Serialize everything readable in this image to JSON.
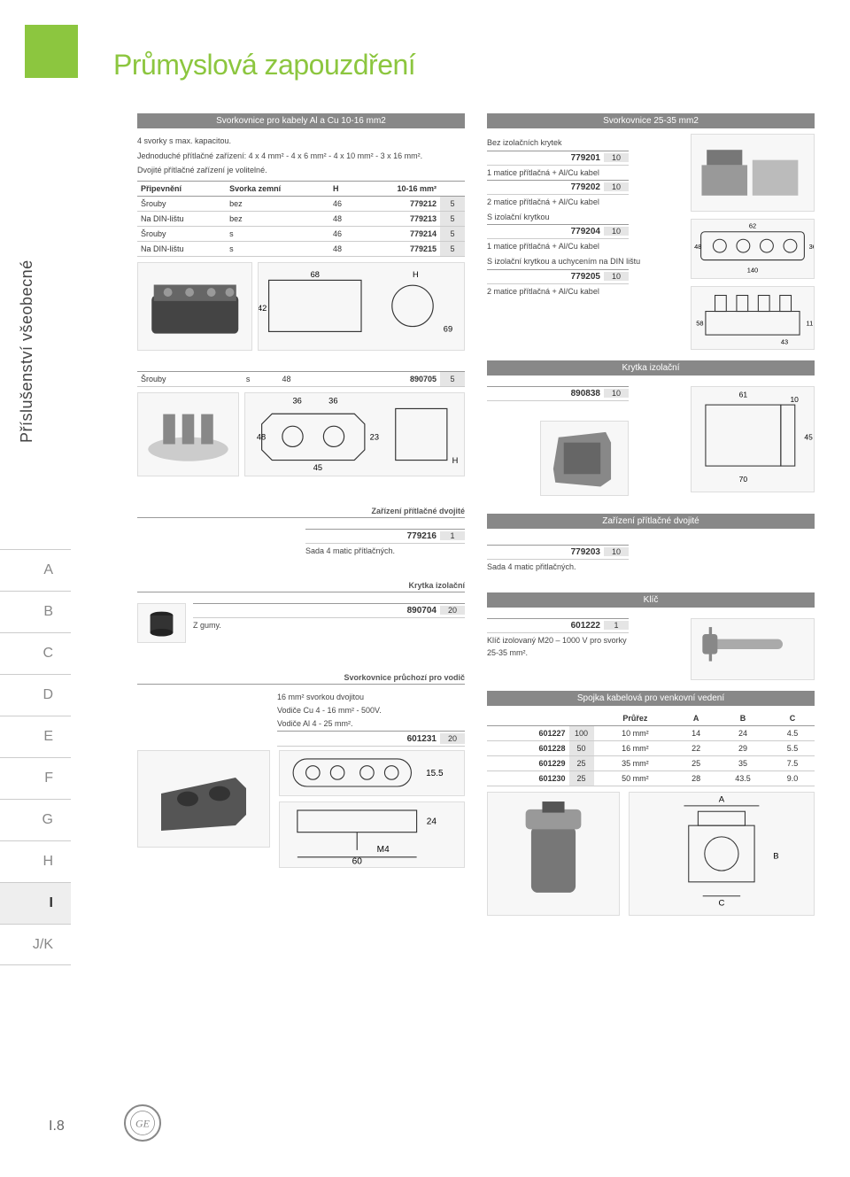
{
  "title": "Průmyslová zapouzdření",
  "side_tab": "Příslušenství všeobecné",
  "page_number": "I.8",
  "index_letters": [
    "A",
    "B",
    "C",
    "D",
    "E",
    "F",
    "G",
    "H",
    "I",
    "J/K"
  ],
  "index_active": "I",
  "left": {
    "sec1": {
      "header": "Svorkovnice pro kabely Al a Cu 10-16 mm2",
      "note1": "4 svorky s max. kapacitou.",
      "note2": "Jednoduché přítlačné zařízení: 4 x 4 mm² - 4 x 6 mm² - 4 x 10 mm² - 3 x 16 mm².",
      "note3": "Dvojité přítlačné zařízení je volitelné.",
      "th": [
        "Připevnění",
        "Svorka zemní",
        "H",
        "10-16 mm²",
        ""
      ],
      "rows": [
        [
          "Šrouby",
          "bez",
          "46",
          "779212",
          "5"
        ],
        [
          "Na DIN-lištu",
          "bez",
          "48",
          "779213",
          "5"
        ],
        [
          "Šrouby",
          "s",
          "46",
          "779214",
          "5"
        ],
        [
          "Na DIN-lištu",
          "s",
          "48",
          "779215",
          "5"
        ]
      ],
      "row_extra": [
        "Šrouby",
        "s",
        "48",
        "890705",
        "5"
      ]
    },
    "sec2": {
      "header": "Zařízení přítlačné dvojité",
      "code": "779216",
      "qty": "1",
      "note": "Sada 4 matic přítlačných."
    },
    "sec3": {
      "header": "Krytka izolační",
      "code": "890704",
      "qty": "20",
      "note": "Z gumy."
    },
    "sec4": {
      "header": "Svorkovnice průchozí pro vodič",
      "note1": "16 mm² svorkou dvojitou",
      "note2": "Vodiče Cu 4 - 16 mm² - 500V.",
      "note3": "Vodiče Al 4 - 25 mm².",
      "code": "601231",
      "qty": "20"
    }
  },
  "right": {
    "sec1": {
      "header": "Svorkovnice 25-35 mm2",
      "items": [
        {
          "label": "Bez izolačních krytek",
          "code": "779201",
          "qty": "10",
          "sub": "1 matice přítlačná + Al/Cu kabel"
        },
        {
          "label": "",
          "code": "779202",
          "qty": "10",
          "sub": "2 matice přítlačná + Al/Cu kabel"
        },
        {
          "label": "S izolační krytkou",
          "code": "779204",
          "qty": "10",
          "sub": "1 matice přítlačná + Al/Cu kabel"
        },
        {
          "label": "S izolační krytkou a uchycením na DIN lištu",
          "code": "779205",
          "qty": "10",
          "sub": "2 matice přítlačná + Al/Cu kabel"
        }
      ]
    },
    "sec2": {
      "header": "Krytka izolační",
      "code": "890838",
      "qty": "10"
    },
    "sec3": {
      "header": "Zařízení přítlačné dvojité",
      "code": "779203",
      "qty": "10",
      "note": "Sada 4 matic přitlačných."
    },
    "sec4": {
      "header": "Klíč",
      "code": "601222",
      "qty": "1",
      "note": "Klíč izolovaný M20 – 1000 V pro svorky",
      "note2": "25-35 mm²."
    },
    "sec5": {
      "header": "Spojka kabelová pro venkovní vedení",
      "th": [
        "",
        "",
        "Průřez",
        "A",
        "B",
        "C"
      ],
      "rows": [
        [
          "601227",
          "100",
          "10 mm²",
          "14",
          "24",
          "4.5"
        ],
        [
          "601228",
          "50",
          "16 mm²",
          "22",
          "29",
          "5.5"
        ],
        [
          "601229",
          "25",
          "35 mm²",
          "25",
          "35",
          "7.5"
        ],
        [
          "601230",
          "25",
          "50 mm²",
          "28",
          "43.5",
          "9.0"
        ]
      ]
    }
  }
}
